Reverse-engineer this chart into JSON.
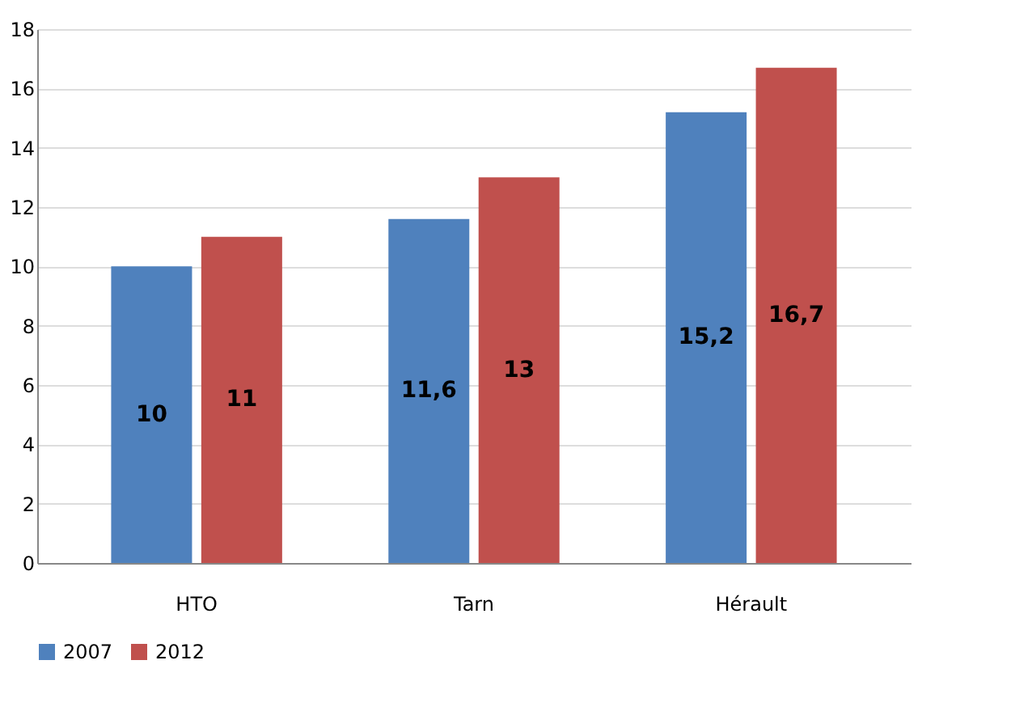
{
  "chart_data": {
    "type": "bar",
    "categories": [
      "HTO",
      "Tarn",
      "Hérault"
    ],
    "series": [
      {
        "name": "2007",
        "color": "#4f81bd",
        "values": [
          10,
          11.6,
          15.2
        ],
        "value_labels": [
          "10",
          "11,6",
          "15,2"
        ]
      },
      {
        "name": "2012",
        "color": "#c0504d",
        "values": [
          11,
          13,
          16.7
        ],
        "value_labels": [
          "11",
          "13",
          "16,7"
        ]
      }
    ],
    "ylim": [
      0,
      18
    ],
    "yticks": [
      0,
      2,
      4,
      6,
      8,
      10,
      12,
      14,
      16,
      18
    ],
    "grid": "y",
    "legend": "bottom"
  }
}
